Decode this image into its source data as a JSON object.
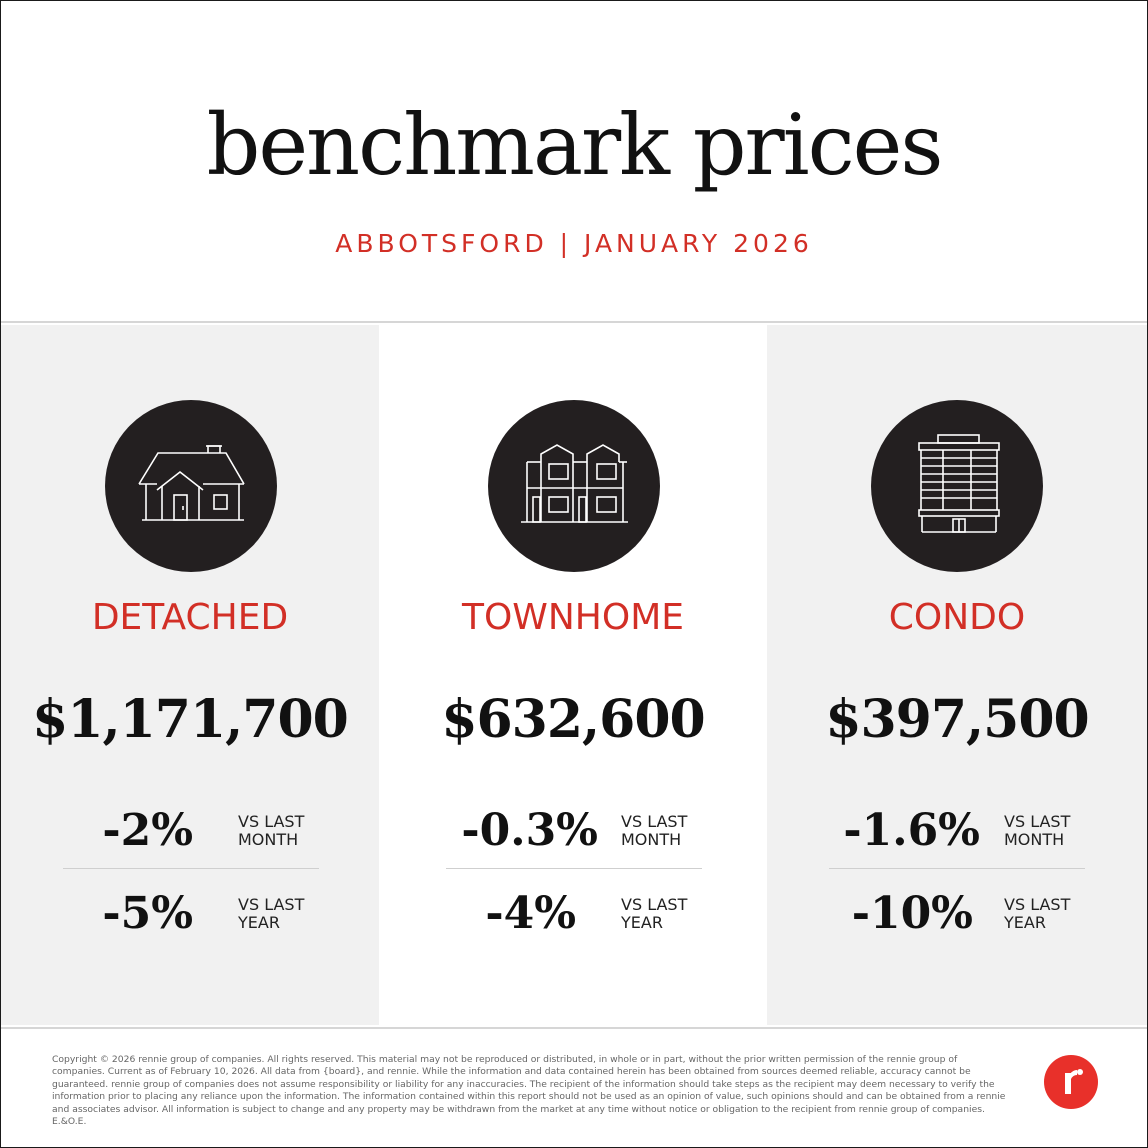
{
  "header": {
    "title": "benchmark prices",
    "subtitle": "ABBOTSFORD | JANUARY 2026"
  },
  "panels": [
    {
      "type": "DETACHED",
      "icon": "detached-house-icon",
      "price": "$1,171,700",
      "month_change": "-2%",
      "month_label_1": "VS LAST",
      "month_label_2": "MONTH",
      "year_change": "-5%",
      "year_label_1": "VS LAST",
      "year_label_2": "YEAR"
    },
    {
      "type": "TOWNHOME",
      "icon": "townhome-icon",
      "price": "$632,600",
      "month_change": "-0.3%",
      "month_label_1": "VS LAST",
      "month_label_2": "MONTH",
      "year_change": "-4%",
      "year_label_1": "VS LAST",
      "year_label_2": "YEAR"
    },
    {
      "type": "CONDO",
      "icon": "condo-building-icon",
      "price": "$397,500",
      "month_change": "-1.6%",
      "month_label_1": "VS LAST",
      "month_label_2": "MONTH",
      "year_change": "-10%",
      "year_label_1": "VS LAST",
      "year_label_2": "YEAR"
    }
  ],
  "footer": {
    "disclaimer": "Copyright © 2026 rennie group of companies. All rights reserved. This material may not be reproduced or distributed, in whole or in part, without the prior written permission of the rennie group of companies. Current as of February 10, 2026. All data from {board}, and rennie. While the information and data contained herein has been obtained from sources deemed reliable, accuracy cannot be guaranteed. rennie group of companies does not assume responsibility or liability for any inaccuracies. The recipient of the information should take steps as the recipient may deem necessary to verify the information prior to placing any reliance upon the information. The information contained within this report should not be used as an opinion of value, such opinions should and can be obtained from a rennie and associates advisor. All information is subject to change and any property may be withdrawn from the market at any time without notice or obligation to the recipient from rennie group of companies. E.&O.E.",
    "logo_icon": "rennie-logo-icon"
  },
  "colors": {
    "accent": "#d22f26",
    "dark": "#231f20",
    "panel_grey": "#f1f1f1",
    "logo_red": "#e8302a"
  }
}
